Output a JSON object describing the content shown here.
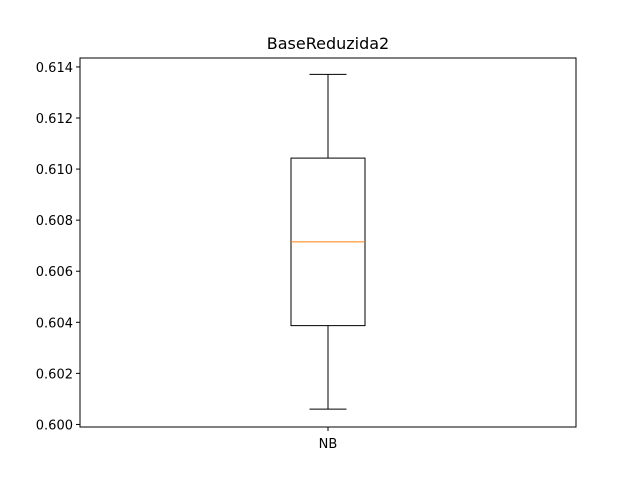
{
  "chart_data": {
    "type": "box",
    "title": "BaseReduzida2",
    "xlabel": "",
    "ylabel": "",
    "categories": [
      "NB"
    ],
    "boxes": [
      {
        "label": "NB",
        "whisker_low": 0.6006,
        "q1": 0.60387,
        "median": 0.60715,
        "q3": 0.61043,
        "whisker_high": 0.61371
      }
    ],
    "ylim": [
      0.5999,
      0.61435
    ],
    "yticks": [
      "0.600",
      "0.602",
      "0.604",
      "0.606",
      "0.608",
      "0.610",
      "0.612",
      "0.614"
    ],
    "grid": false,
    "colors": {
      "box": "#000000",
      "median": "#ff7f0e",
      "axes": "#000000"
    }
  }
}
